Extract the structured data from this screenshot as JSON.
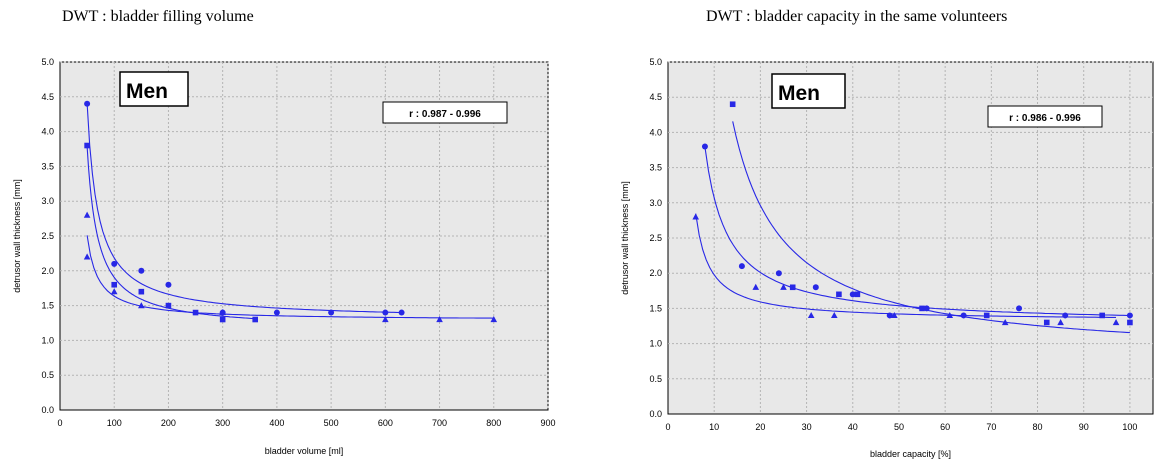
{
  "colors": {
    "series": "#2828e6",
    "plot_bg": "#e8e8e8",
    "grid": "#b4b4b4"
  },
  "chart_data": [
    {
      "type": "scatter",
      "title": "DWT : bladder filling volume",
      "panel_label": "Men",
      "annotation": "r : 0.987 - 0.996",
      "xlabel": "bladder volume [ml]",
      "ylabel": "detrusor wall thickness [mm]",
      "xlim": [
        0,
        900
      ],
      "ylim": [
        0,
        5
      ],
      "xticks": [
        0,
        100,
        200,
        300,
        400,
        500,
        600,
        700,
        800,
        900
      ],
      "yticks": [
        0.0,
        0.5,
        1.0,
        1.5,
        2.0,
        2.5,
        3.0,
        3.5,
        4.0,
        4.5,
        5.0
      ],
      "grid": true,
      "series": [
        {
          "marker": "circle",
          "x": [
            50,
            100,
            150,
            200,
            300,
            400,
            500,
            600,
            630
          ],
          "y": [
            4.4,
            2.1,
            2.0,
            1.8,
            1.4,
            1.4,
            1.4,
            1.4,
            1.4
          ]
        },
        {
          "marker": "square",
          "x": [
            50,
            100,
            150,
            200,
            250,
            300,
            360
          ],
          "y": [
            3.8,
            1.8,
            1.7,
            1.5,
            1.4,
            1.3,
            1.3
          ]
        },
        {
          "marker": "triangle",
          "x": [
            50,
            50,
            100,
            150,
            300,
            600,
            700,
            800
          ],
          "y": [
            2.8,
            2.2,
            1.7,
            1.5,
            1.4,
            1.3,
            1.3,
            1.3
          ]
        }
      ]
    },
    {
      "type": "scatter",
      "title": "DWT : bladder capacity in the same volunteers",
      "panel_label": "Men",
      "annotation": "r : 0.986 - 0.996",
      "xlabel": "bladder capacity [%]",
      "ylabel": "detrusor wall thickness [mm]",
      "xlim": [
        0,
        105
      ],
      "ylim": [
        0,
        5
      ],
      "xticks": [
        0,
        10,
        20,
        30,
        40,
        50,
        60,
        70,
        80,
        90,
        100
      ],
      "yticks": [
        0.0,
        0.5,
        1.0,
        1.5,
        2.0,
        2.5,
        3.0,
        3.5,
        4.0,
        4.5,
        5.0
      ],
      "grid": true,
      "series": [
        {
          "marker": "circle",
          "x": [
            8,
            16,
            24,
            32,
            40,
            48,
            56,
            64,
            76,
            86,
            100
          ],
          "y": [
            3.8,
            2.1,
            2.0,
            1.8,
            1.7,
            1.4,
            1.5,
            1.4,
            1.5,
            1.4,
            1.4
          ]
        },
        {
          "marker": "square",
          "x": [
            14,
            27,
            37,
            41,
            55,
            69,
            82,
            94,
            100
          ],
          "y": [
            4.4,
            1.8,
            1.7,
            1.7,
            1.5,
            1.4,
            1.3,
            1.4,
            1.3
          ]
        },
        {
          "marker": "triangle",
          "x": [
            6,
            19,
            25,
            31,
            36,
            49,
            61,
            73,
            85,
            97
          ],
          "y": [
            2.8,
            1.8,
            1.8,
            1.4,
            1.4,
            1.4,
            1.4,
            1.3,
            1.3,
            1.3
          ]
        }
      ]
    }
  ]
}
